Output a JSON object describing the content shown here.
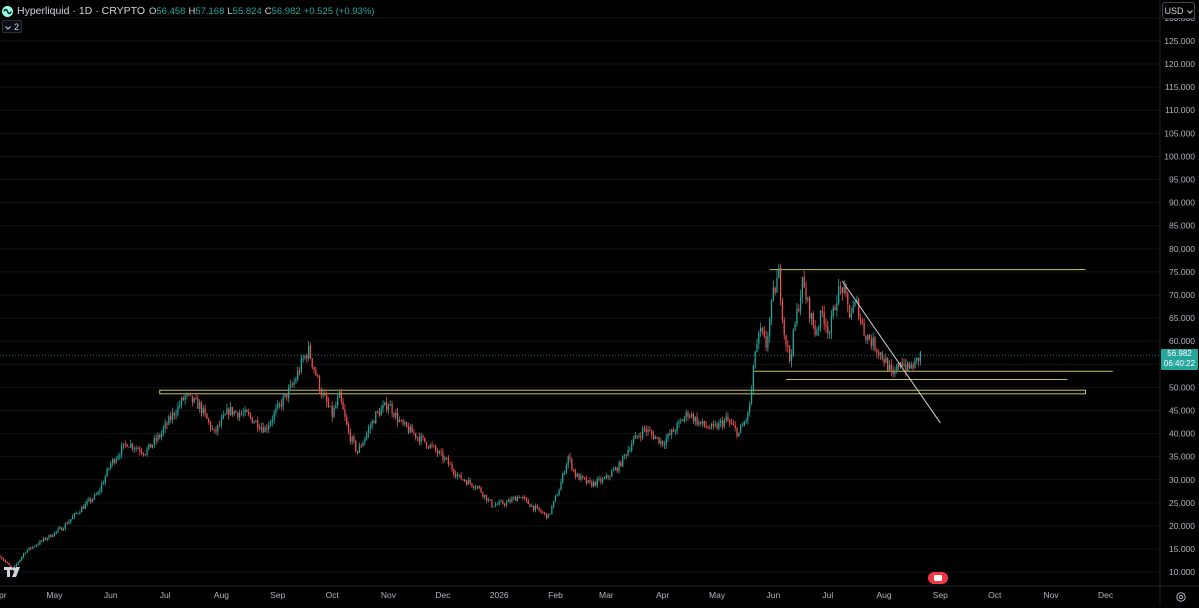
{
  "header": {
    "symbol": "Hyperliquid · 1D · CRYPTO",
    "open_label": "O",
    "open": "56.458",
    "high_label": "H",
    "high": "57.168",
    "low_label": "L",
    "low": "55.824",
    "close_label": "C",
    "close": "56.982",
    "change": "+0.525 (+0.93%)",
    "indicators_count": "2"
  },
  "currency": "USD",
  "last_price": {
    "price": "56.982",
    "countdown": "06:40:22"
  },
  "colors": {
    "up": "#26a69a",
    "down": "#ef5350",
    "background": "#000000",
    "level": "#c7c45a",
    "trendline": "#d1d4dc",
    "grid": "#111318"
  },
  "icons": [
    "hyperliquid-logo-icon",
    "chevron-icon",
    "chevron-down-icon",
    "tradingview-logo-icon",
    "settings-icon",
    "go-to-realtime-icon"
  ],
  "chart_data": {
    "type": "candlestick",
    "y_axis_side": "right",
    "y_ticks": [
      130,
      125,
      120,
      115,
      110,
      105,
      100,
      95,
      90,
      85,
      80,
      75,
      70,
      65,
      60,
      55,
      50,
      45,
      40,
      35,
      30,
      25,
      20,
      15,
      10
    ],
    "y_tick_labels": [
      "130.000",
      "125.000",
      "120.000",
      "115.000",
      "110.000",
      "105.000",
      "100.000",
      "95.000",
      "90.000",
      "85.000",
      "80.000",
      "75.000",
      "70.000",
      "65.000",
      "60.000",
      "55.000",
      "50.000",
      "45.000",
      "40.000",
      "35.000",
      "30.000",
      "25.000",
      "20.000",
      "15.000",
      "10.000"
    ],
    "ylim": [
      7,
      133
    ],
    "x_labels": [
      "Apr",
      "May",
      "Jun",
      "Jul",
      "Aug",
      "Sep",
      "Oct",
      "Nov",
      "Dec",
      "2026",
      "Feb",
      "Mar",
      "Apr",
      "May",
      "Jun",
      "Jul",
      "Aug",
      "Sep",
      "Oct",
      "Nov",
      "Dec"
    ],
    "x_label_dates": [
      "2025-04-01",
      "2025-05-01",
      "2025-06-01",
      "2025-07-01",
      "2025-08-01",
      "2025-09-01",
      "2025-10-01",
      "2025-11-01",
      "2025-12-01",
      "2026-01-01",
      "2026-02-01",
      "2026-03-01",
      "2026-04-01",
      "2026-05-01",
      "2026-06-01",
      "2026-07-01",
      "2026-08-01",
      "2026-09-01",
      "2026-10-01",
      "2026-11-01",
      "2026-12-01"
    ],
    "xlim": [
      "2025-04-01",
      "2026-12-31"
    ],
    "close_path": [
      [
        "2025-04-01",
        13.5
      ],
      [
        "2025-04-08",
        10.5
      ],
      [
        "2025-04-15",
        14.5
      ],
      [
        "2025-04-25",
        17.0
      ],
      [
        "2025-05-05",
        19.5
      ],
      [
        "2025-05-15",
        23.5
      ],
      [
        "2025-05-25",
        27.0
      ],
      [
        "2025-06-01",
        33.5
      ],
      [
        "2025-06-10",
        38.0
      ],
      [
        "2025-06-20",
        36.0
      ],
      [
        "2025-06-28",
        39.5
      ],
      [
        "2025-07-05",
        44.0
      ],
      [
        "2025-07-12",
        48.0
      ],
      [
        "2025-07-20",
        46.0
      ],
      [
        "2025-07-28",
        40.0
      ],
      [
        "2025-08-05",
        45.0
      ],
      [
        "2025-08-15",
        44.0
      ],
      [
        "2025-08-25",
        41.0
      ],
      [
        "2025-09-02",
        46.0
      ],
      [
        "2025-09-10",
        51.0
      ],
      [
        "2025-09-15",
        56.0
      ],
      [
        "2025-09-18",
        58.0
      ],
      [
        "2025-09-25",
        49.0
      ],
      [
        "2025-10-01",
        44.0
      ],
      [
        "2025-10-05",
        48.0
      ],
      [
        "2025-10-10",
        40.0
      ],
      [
        "2025-10-15",
        36.0
      ],
      [
        "2025-10-25",
        44.0
      ],
      [
        "2025-11-01",
        46.5
      ],
      [
        "2025-11-08",
        42.0
      ],
      [
        "2025-11-15",
        40.0
      ],
      [
        "2025-11-25",
        37.0
      ],
      [
        "2025-12-03",
        34.0
      ],
      [
        "2025-12-10",
        30.5
      ],
      [
        "2025-12-20",
        28.5
      ],
      [
        "2025-12-28",
        24.5
      ],
      [
        "2026-01-05",
        25.0
      ],
      [
        "2026-01-12",
        26.5
      ],
      [
        "2026-01-20",
        24.0
      ],
      [
        "2026-01-28",
        22.0
      ],
      [
        "2026-02-03",
        28.0
      ],
      [
        "2026-02-08",
        35.0
      ],
      [
        "2026-02-12",
        31.0
      ],
      [
        "2026-02-20",
        29.0
      ],
      [
        "2026-02-28",
        30.0
      ],
      [
        "2026-03-08",
        33.0
      ],
      [
        "2026-03-15",
        38.0
      ],
      [
        "2026-03-22",
        41.0
      ],
      [
        "2026-04-01",
        38.0
      ],
      [
        "2026-04-08",
        41.0
      ],
      [
        "2026-04-15",
        44.5
      ],
      [
        "2026-04-22",
        42.0
      ],
      [
        "2026-04-29",
        41.0
      ],
      [
        "2026-05-06",
        43.0
      ],
      [
        "2026-05-13",
        40.0
      ],
      [
        "2026-05-18",
        44.0
      ],
      [
        "2026-05-20",
        49.0
      ],
      [
        "2026-05-22",
        58.0
      ],
      [
        "2026-05-25",
        62.0
      ],
      [
        "2026-05-28",
        59.0
      ],
      [
        "2026-06-01",
        70.0
      ],
      [
        "2026-06-04",
        74.5
      ],
      [
        "2026-06-07",
        62.0
      ],
      [
        "2026-06-10",
        56.0
      ],
      [
        "2026-06-14",
        66.0
      ],
      [
        "2026-06-17",
        72.5
      ],
      [
        "2026-06-20",
        68.0
      ],
      [
        "2026-06-24",
        62.0
      ],
      [
        "2026-06-28",
        66.0
      ],
      [
        "2026-07-02",
        62.0
      ],
      [
        "2026-07-06",
        70.0
      ],
      [
        "2026-07-09",
        71.5
      ],
      [
        "2026-07-13",
        66.0
      ],
      [
        "2026-07-17",
        68.0
      ],
      [
        "2026-07-21",
        62.0
      ],
      [
        "2026-07-25",
        60.0
      ],
      [
        "2026-07-29",
        58.0
      ],
      [
        "2026-08-02",
        55.5
      ],
      [
        "2026-08-06",
        52.0
      ],
      [
        "2026-08-10",
        56.0
      ],
      [
        "2026-08-14",
        54.0
      ],
      [
        "2026-08-18",
        55.0
      ],
      [
        "2026-08-21",
        56.982
      ]
    ],
    "drawings": {
      "horizontal_levels": [
        {
          "price": 49.0,
          "from": "2025-06-28",
          "to": "2026-11-20",
          "style": "double band"
        },
        {
          "price": 75.5,
          "from": "2026-05-30",
          "to": "2026-11-20"
        },
        {
          "price": 53.5,
          "from": "2026-05-21",
          "to": "2026-12-05"
        },
        {
          "price": 51.7,
          "from": "2026-06-08",
          "to": "2026-11-10"
        }
      ],
      "trendline": {
        "from": [
          "2026-07-09",
          73.0
        ],
        "to": [
          "2026-09-01",
          42.3
        ]
      }
    }
  }
}
